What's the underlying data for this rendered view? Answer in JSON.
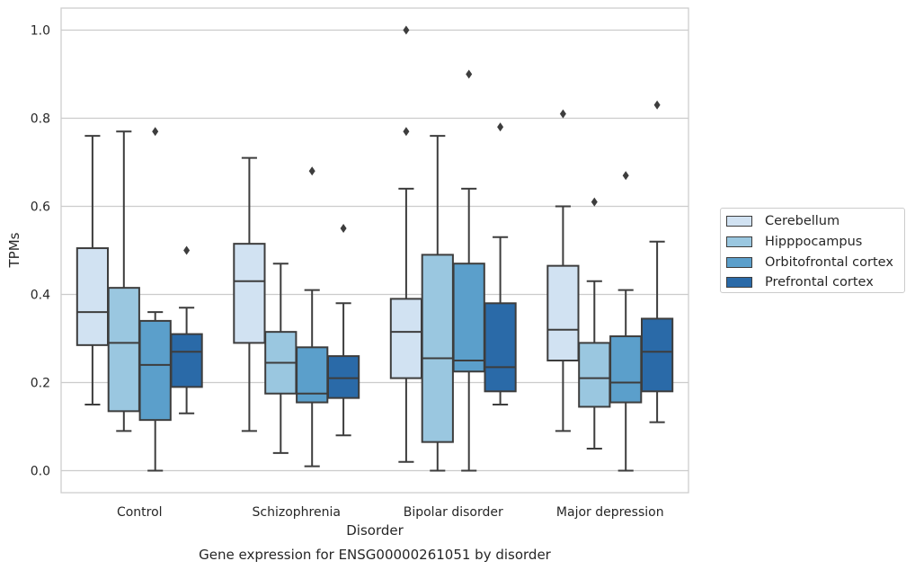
{
  "chart_data": {
    "type": "box",
    "title": "Gene expression for ENSG00000261051 by disorder",
    "xlabel": "Disorder",
    "ylabel": "TPMs",
    "ylim": [
      -0.05,
      1.05
    ],
    "yticks": [
      "0.0",
      "0.2",
      "0.4",
      "0.6",
      "0.8",
      "1.0"
    ],
    "grid": true,
    "legend_position": "right",
    "categories": [
      "Control",
      "Schizophrenia",
      "Bipolar disorder",
      "Major depression"
    ],
    "series": [
      {
        "name": "Cerebellum",
        "color": "#d1e2f2",
        "boxes": [
          {
            "whislo": 0.15,
            "q1": 0.285,
            "med": 0.36,
            "q3": 0.505,
            "whishi": 0.76,
            "fliers": []
          },
          {
            "whislo": 0.09,
            "q1": 0.29,
            "med": 0.43,
            "q3": 0.515,
            "whishi": 0.71,
            "fliers": []
          },
          {
            "whislo": 0.02,
            "q1": 0.21,
            "med": 0.315,
            "q3": 0.39,
            "whishi": 0.64,
            "fliers": [
              0.77,
              1.0
            ]
          },
          {
            "whislo": 0.09,
            "q1": 0.25,
            "med": 0.32,
            "q3": 0.465,
            "whishi": 0.6,
            "fliers": [
              0.81
            ]
          }
        ]
      },
      {
        "name": "Hipppocampus",
        "color": "#9ac7e0",
        "boxes": [
          {
            "whislo": 0.09,
            "q1": 0.135,
            "med": 0.29,
            "q3": 0.415,
            "whishi": 0.77,
            "fliers": []
          },
          {
            "whislo": 0.04,
            "q1": 0.175,
            "med": 0.245,
            "q3": 0.315,
            "whishi": 0.47,
            "fliers": []
          },
          {
            "whislo": 0.0,
            "q1": 0.065,
            "med": 0.255,
            "q3": 0.49,
            "whishi": 0.76,
            "fliers": []
          },
          {
            "whislo": 0.05,
            "q1": 0.145,
            "med": 0.21,
            "q3": 0.29,
            "whishi": 0.43,
            "fliers": [
              0.61
            ]
          }
        ]
      },
      {
        "name": "Orbitofrontal cortex",
        "color": "#5b9fcb",
        "boxes": [
          {
            "whislo": 0.0,
            "q1": 0.115,
            "med": 0.24,
            "q3": 0.34,
            "whishi": 0.36,
            "fliers": [
              0.77
            ]
          },
          {
            "whislo": 0.01,
            "q1": 0.155,
            "med": 0.175,
            "q3": 0.28,
            "whishi": 0.41,
            "fliers": [
              0.68
            ]
          },
          {
            "whislo": 0.0,
            "q1": 0.225,
            "med": 0.25,
            "q3": 0.47,
            "whishi": 0.64,
            "fliers": [
              0.9
            ]
          },
          {
            "whislo": 0.0,
            "q1": 0.155,
            "med": 0.2,
            "q3": 0.305,
            "whishi": 0.41,
            "fliers": [
              0.67
            ]
          }
        ]
      },
      {
        "name": "Prefrontal cortex",
        "color": "#2a6aa8",
        "boxes": [
          {
            "whislo": 0.13,
            "q1": 0.19,
            "med": 0.27,
            "q3": 0.31,
            "whishi": 0.37,
            "fliers": [
              0.5
            ]
          },
          {
            "whislo": 0.08,
            "q1": 0.165,
            "med": 0.21,
            "q3": 0.26,
            "whishi": 0.38,
            "fliers": [
              0.55
            ]
          },
          {
            "whislo": 0.15,
            "q1": 0.18,
            "med": 0.235,
            "q3": 0.38,
            "whishi": 0.53,
            "fliers": [
              0.78
            ]
          },
          {
            "whislo": 0.11,
            "q1": 0.18,
            "med": 0.27,
            "q3": 0.345,
            "whishi": 0.52,
            "fliers": [
              0.83
            ]
          }
        ]
      }
    ]
  }
}
